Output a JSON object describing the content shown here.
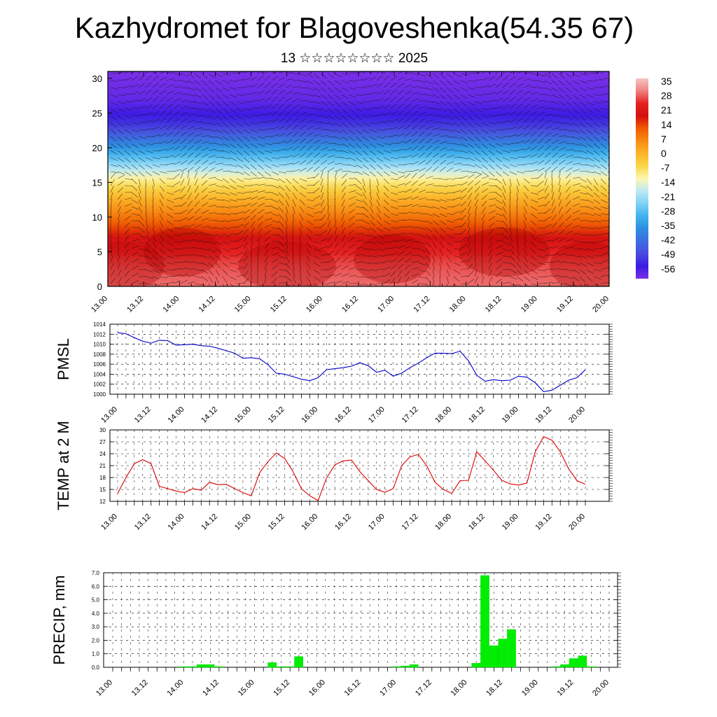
{
  "title": "Kazhydromet for Blagoveshenka(54.35 67)",
  "subtitle": "13 ☆☆☆☆☆☆☆☆ 2025",
  "chart_data": [
    {
      "type": "heatmap",
      "name": "cross-section",
      "title": "",
      "xlabel": "",
      "ylabel": "",
      "x_ticks": [
        "13.00",
        "13.12",
        "14.00",
        "14.12",
        "15.00",
        "15.12",
        "16.00",
        "16.12",
        "17.00",
        "17.12",
        "18.00",
        "18.12",
        "19.00",
        "19.12",
        "20.00"
      ],
      "y_ticks": [
        0,
        5,
        10,
        15,
        20,
        25,
        30
      ],
      "ylim": [
        0,
        31
      ],
      "colorbar": {
        "labels": [
          "35",
          "28",
          "21",
          "14",
          "7",
          "0",
          "-7",
          "-14",
          "-21",
          "-28",
          "-35",
          "-42",
          "-49",
          "-56"
        ],
        "colors": [
          "#f6c4c4",
          "#f08080",
          "#e62020",
          "#d41010",
          "#f05a00",
          "#f88c14",
          "#fcb428",
          "#fad74a",
          "#fef7b0",
          "#bde9f7",
          "#7fd1f5",
          "#3fb3ee",
          "#2e8fe0",
          "#3d6de0",
          "#4a4ae0",
          "#3a1ae4",
          "#7a30e8"
        ]
      },
      "levels_temp": [
        [
          0,
          28
        ],
        [
          2,
          27
        ],
        [
          4,
          25
        ],
        [
          6,
          21
        ],
        [
          8,
          15
        ],
        [
          10,
          9
        ],
        [
          12,
          3
        ],
        [
          14,
          -4
        ],
        [
          15.5,
          -10
        ],
        [
          17,
          -18
        ],
        [
          19,
          -28
        ],
        [
          21,
          -38
        ],
        [
          23,
          -47
        ],
        [
          25,
          -52
        ],
        [
          27,
          -55
        ],
        [
          29,
          -56
        ],
        [
          31,
          -57
        ]
      ]
    },
    {
      "type": "line",
      "name": "pmsl",
      "ylabel": "PMSL",
      "ylim": [
        1000,
        1014
      ],
      "y_ticks": [
        1000,
        1002,
        1004,
        1006,
        1008,
        1010,
        1012,
        1014
      ],
      "x_ticks": [
        "13.00",
        "13.12",
        "14.00",
        "14.12",
        "15.00",
        "15.12",
        "16.00",
        "16.12",
        "17.00",
        "17.12",
        "18.00",
        "18.12",
        "19.00",
        "19.12",
        "20.00"
      ],
      "color": "#0000cc",
      "values": [
        1012.3,
        1012.1,
        1011.3,
        1010.6,
        1010.2,
        1010.8,
        1010.7,
        1009.8,
        1009.9,
        1010.0,
        1009.7,
        1009.6,
        1009.2,
        1008.7,
        1008.2,
        1007.2,
        1007.3,
        1007.1,
        1005.9,
        1004.2,
        1004.0,
        1003.5,
        1003.0,
        1002.7,
        1003.3,
        1004.9,
        1005.1,
        1005.3,
        1005.6,
        1006.3,
        1005.7,
        1004.4,
        1004.8,
        1003.6,
        1004.2,
        1005.3,
        1006.2,
        1007.3,
        1008.2,
        1008.2,
        1008.1,
        1008.6,
        1006.7,
        1003.8,
        1002.6,
        1002.9,
        1002.7,
        1002.8,
        1003.6,
        1003.4,
        1002.3,
        1000.5,
        1000.8,
        1001.8,
        1002.8,
        1003.3,
        1004.9
      ]
    },
    {
      "type": "line",
      "name": "temp2m",
      "ylabel": "TEMP at 2 M",
      "ylim": [
        12,
        30
      ],
      "y_ticks": [
        12,
        15,
        18,
        21,
        24,
        27,
        30
      ],
      "x_ticks": [
        "13.00",
        "13.12",
        "14.00",
        "14.12",
        "15.00",
        "15.12",
        "16.00",
        "16.12",
        "17.00",
        "17.12",
        "18.00",
        "18.12",
        "19.00",
        "19.12",
        "20.00"
      ],
      "color": "#dd0000",
      "values": [
        14.0,
        18.0,
        21.5,
        22.5,
        21.5,
        15.8,
        15.2,
        14.6,
        14.2,
        15.2,
        14.8,
        16.8,
        16.2,
        16.3,
        15.2,
        14.2,
        13.4,
        19.2,
        22.0,
        24.2,
        22.8,
        19.5,
        15.2,
        13.4,
        12.2,
        17.8,
        21.2,
        22.2,
        22.4,
        19.5,
        17.2,
        15.0,
        14.3,
        15.2,
        21.0,
        23.2,
        23.8,
        21.0,
        16.8,
        15.0,
        14.0,
        17.2,
        17.3,
        24.5,
        22.2,
        19.8,
        17.3,
        16.4,
        16.1,
        16.6,
        24.5,
        28.3,
        27.4,
        24.5,
        20.2,
        17.2,
        16.3
      ]
    },
    {
      "type": "bar",
      "name": "precip",
      "ylabel": "PRECIP, mm",
      "ylim": [
        0,
        7
      ],
      "y_ticks": [
        "0.0",
        "1.0",
        "2.0",
        "3.0",
        "4.0",
        "5.0",
        "6.0",
        "7.0"
      ],
      "x_ticks": [
        "13.00",
        "13.12",
        "14.00",
        "14.12",
        "15.00",
        "15.12",
        "16.00",
        "16.12",
        "17.00",
        "17.12",
        "18.00",
        "18.12",
        "19.00",
        "19.12",
        "20.00"
      ],
      "color": "#00ee00",
      "values": [
        0,
        0,
        0,
        0,
        0,
        0,
        0,
        0,
        0.05,
        0.05,
        0.2,
        0.2,
        0.05,
        0,
        0,
        0,
        0,
        0,
        0.35,
        0.05,
        0.05,
        0.8,
        0,
        0,
        0,
        0,
        0,
        0,
        0,
        0,
        0,
        0,
        0.05,
        0.1,
        0.2,
        0,
        0,
        0,
        0,
        0,
        0,
        0.3,
        6.8,
        1.6,
        2.1,
        2.8,
        0,
        0,
        0,
        0,
        0.05,
        0.2,
        0.65,
        0.85,
        0.05,
        0,
        0
      ]
    }
  ]
}
